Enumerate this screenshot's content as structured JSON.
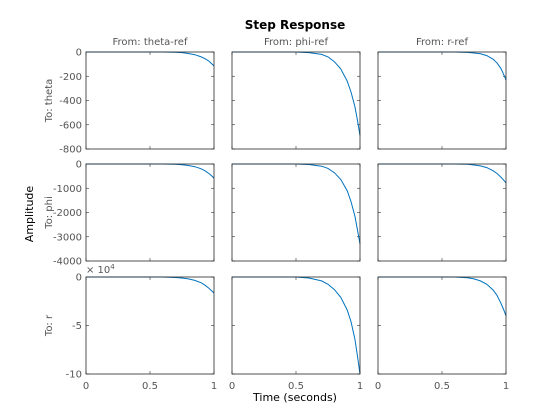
{
  "chart_data": {
    "type": "line",
    "title": "Step Response",
    "xlabel": "Time (seconds)",
    "ylabel": "Amplitude",
    "xlim": [
      0,
      1
    ],
    "x_ticks": [
      "0",
      "0.5",
      "1"
    ],
    "grid": false,
    "line_color": "#0072bd",
    "columns": [
      "From: theta-ref",
      "From: phi-ref",
      "From: r-ref"
    ],
    "rows": [
      {
        "label": "To: theta",
        "ylim": [
          -800,
          0
        ],
        "y_ticks": [
          "0",
          "-200",
          "-400",
          "-600",
          "-800"
        ],
        "y_tick_values": [
          0,
          -200,
          -400,
          -600,
          -800
        ],
        "exponent_label": ""
      },
      {
        "label": "To: phi",
        "ylim": [
          -4000,
          0
        ],
        "y_ticks": [
          "0",
          "-1000",
          "-2000",
          "-3000",
          "-4000"
        ],
        "y_tick_values": [
          0,
          -1000,
          -2000,
          -3000,
          -4000
        ],
        "exponent_label": ""
      },
      {
        "label": "To: r",
        "ylim": [
          -10,
          0
        ],
        "y_ticks": [
          "0",
          "-5",
          "-10"
        ],
        "y_tick_values": [
          0,
          -5,
          -10
        ],
        "exponent_label": "× 10^4"
      }
    ],
    "series": [
      {
        "row": 0,
        "col": 0,
        "x": [
          0,
          0.6,
          0.7,
          0.75,
          0.8,
          0.85,
          0.9,
          0.93,
          0.96,
          0.98,
          1.0
        ],
        "y": [
          0,
          0,
          -2,
          -5,
          -12,
          -22,
          -40,
          -55,
          -75,
          -95,
          -115
        ]
      },
      {
        "row": 0,
        "col": 1,
        "x": [
          0,
          0.5,
          0.6,
          0.7,
          0.75,
          0.8,
          0.85,
          0.9,
          0.93,
          0.96,
          0.98,
          1.0
        ],
        "y": [
          0,
          0,
          -5,
          -20,
          -40,
          -80,
          -140,
          -240,
          -330,
          -450,
          -560,
          -690
        ]
      },
      {
        "row": 0,
        "col": 2,
        "x": [
          0,
          0.6,
          0.7,
          0.75,
          0.8,
          0.85,
          0.9,
          0.93,
          0.96,
          0.98,
          1.0
        ],
        "y": [
          0,
          0,
          -3,
          -8,
          -15,
          -30,
          -60,
          -90,
          -135,
          -180,
          -230
        ]
      },
      {
        "row": 1,
        "col": 0,
        "x": [
          0,
          0.6,
          0.7,
          0.75,
          0.8,
          0.85,
          0.9,
          0.93,
          0.96,
          0.98,
          1.0
        ],
        "y": [
          0,
          0,
          -10,
          -30,
          -60,
          -110,
          -200,
          -280,
          -390,
          -480,
          -580
        ]
      },
      {
        "row": 1,
        "col": 1,
        "x": [
          0,
          0.5,
          0.6,
          0.7,
          0.75,
          0.8,
          0.85,
          0.9,
          0.93,
          0.96,
          0.98,
          1.0
        ],
        "y": [
          0,
          0,
          -20,
          -90,
          -180,
          -360,
          -640,
          -1100,
          -1550,
          -2150,
          -2700,
          -3300
        ]
      },
      {
        "row": 1,
        "col": 2,
        "x": [
          0,
          0.6,
          0.7,
          0.75,
          0.8,
          0.85,
          0.9,
          0.93,
          0.96,
          0.98,
          1.0
        ],
        "y": [
          0,
          0,
          -12,
          -40,
          -80,
          -150,
          -280,
          -390,
          -540,
          -650,
          -780
        ]
      },
      {
        "row": 2,
        "col": 0,
        "x": [
          0,
          0.6,
          0.7,
          0.75,
          0.8,
          0.85,
          0.9,
          0.93,
          0.96,
          0.98,
          1.0
        ],
        "y": [
          0,
          0,
          -0.05,
          -0.1,
          -0.2,
          -0.35,
          -0.6,
          -0.85,
          -1.15,
          -1.4,
          -1.65
        ]
      },
      {
        "row": 2,
        "col": 1,
        "x": [
          0,
          0.5,
          0.6,
          0.7,
          0.75,
          0.8,
          0.85,
          0.9,
          0.93,
          0.96,
          0.98,
          1.0
        ],
        "y": [
          0,
          0,
          -0.1,
          -0.4,
          -0.75,
          -1.3,
          -2.1,
          -3.4,
          -4.6,
          -6.4,
          -8.1,
          -10
        ]
      },
      {
        "row": 2,
        "col": 2,
        "x": [
          0,
          0.6,
          0.7,
          0.75,
          0.8,
          0.85,
          0.9,
          0.93,
          0.96,
          0.98,
          1.0
        ],
        "y": [
          0,
          0,
          -0.08,
          -0.2,
          -0.4,
          -0.75,
          -1.35,
          -1.9,
          -2.7,
          -3.3,
          -4.0
        ]
      }
    ]
  }
}
